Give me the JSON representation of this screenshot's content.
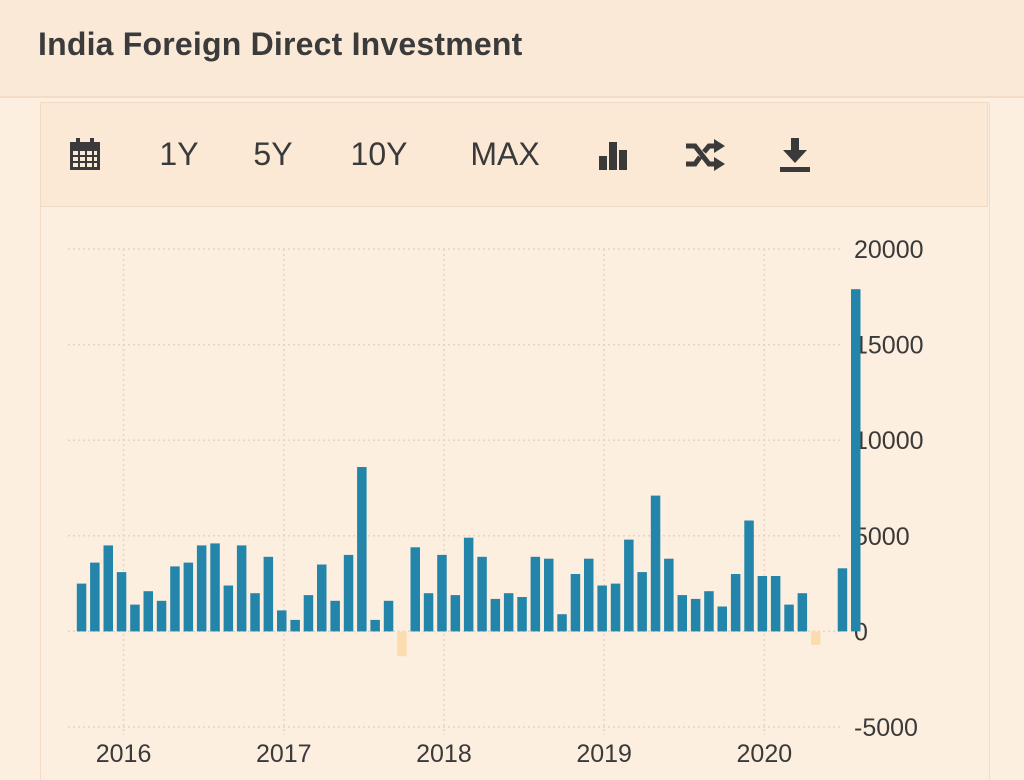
{
  "header": {
    "title": "India Foreign Direct Investment"
  },
  "toolbar": {
    "calendar_icon": "calendar-icon",
    "ranges": [
      "1Y",
      "5Y",
      "10Y",
      "MAX"
    ],
    "bar_chart_icon": "bar-chart-icon",
    "shuffle_icon": "shuffle-icon",
    "download_icon": "download-icon"
  },
  "colors": {
    "positive": "#2385a9",
    "negative": "#fbdcae",
    "grid": "#e8d3bf"
  },
  "chart_data": {
    "type": "bar",
    "title": "",
    "xlabel": "",
    "ylabel": "",
    "ylim": [
      -5000,
      20000
    ],
    "yticks": [
      20000,
      15000,
      10000,
      5000,
      0,
      -5000
    ],
    "xticks": [
      "2016",
      "2017",
      "2018",
      "2019",
      "2020"
    ],
    "grid": true,
    "axis_side": "right",
    "x": [
      "2015-10",
      "2015-11",
      "2015-12",
      "2016-01",
      "2016-02",
      "2016-03",
      "2016-04",
      "2016-05",
      "2016-06",
      "2016-07",
      "2016-08",
      "2016-09",
      "2016-10",
      "2016-11",
      "2016-12",
      "2017-01",
      "2017-02",
      "2017-03",
      "2017-04",
      "2017-05",
      "2017-06",
      "2017-07",
      "2017-08",
      "2017-09",
      "2017-10",
      "2017-11",
      "2017-12",
      "2018-01",
      "2018-02",
      "2018-03",
      "2018-04",
      "2018-05",
      "2018-06",
      "2018-07",
      "2018-08",
      "2018-09",
      "2018-10",
      "2018-11",
      "2018-12",
      "2019-01",
      "2019-02",
      "2019-03",
      "2019-04",
      "2019-05",
      "2019-06",
      "2019-07",
      "2019-08",
      "2019-09",
      "2019-10",
      "2019-11",
      "2019-12",
      "2020-01",
      "2020-02",
      "2020-03",
      "2020-04",
      "2020-05",
      "2020-06",
      "2020-07",
      "2020-08"
    ],
    "values": [
      2500,
      3600,
      4500,
      3100,
      1400,
      2100,
      1600,
      3400,
      3600,
      4500,
      4600,
      2400,
      4500,
      2000,
      3900,
      1100,
      600,
      1900,
      3500,
      1600,
      4000,
      8600,
      600,
      1600,
      -1300,
      4400,
      2000,
      4000,
      1900,
      4900,
      3900,
      1700,
      2000,
      1800,
      3900,
      3800,
      900,
      3000,
      3800,
      2400,
      2500,
      4800,
      3100,
      7100,
      3800,
      1900,
      1700,
      2100,
      1300,
      3000,
      5800,
      2900,
      2900,
      1400,
      2000,
      -700,
      null,
      3300,
      17900
    ]
  }
}
